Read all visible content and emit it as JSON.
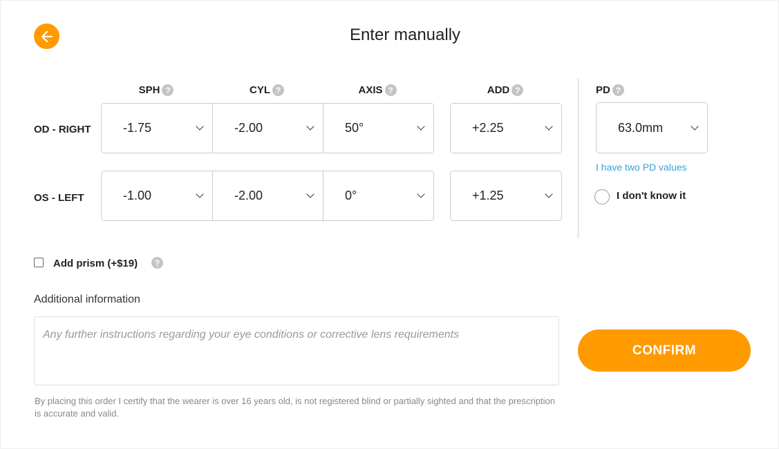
{
  "header": {
    "title": "Enter manually",
    "back_icon": "arrow-left-icon"
  },
  "columns": {
    "sph": "SPH",
    "cyl": "CYL",
    "axis": "AXIS",
    "add": "ADD",
    "pd": "PD"
  },
  "rows": [
    {
      "label": "OD - RIGHT",
      "sph": "-1.75",
      "cyl": "-2.00",
      "axis": "50°",
      "add": "+2.25"
    },
    {
      "label": "OS - LEFT",
      "sph": "-1.00",
      "cyl": "-2.00",
      "axis": "0°",
      "add": "+1.25"
    }
  ],
  "pd": {
    "value": "63.0mm",
    "two_values_link": "I have two PD values",
    "dont_know": "I don't know it",
    "dont_know_checked": false
  },
  "prism": {
    "label": "Add prism (+$19)",
    "checked": false
  },
  "additional": {
    "label": "Additional information",
    "value": "",
    "placeholder": "Any further instructions regarding your eye conditions or corrective lens requirements"
  },
  "confirm_label": "CONFIRM",
  "disclaimer": "By placing this order I certify that the wearer is over 16 years old, is not registered blind or partially sighted and that the prescription is accurate and valid.",
  "help_glyph": "?",
  "colors": {
    "accent": "#ff9a00",
    "link": "#3aa0d8"
  }
}
